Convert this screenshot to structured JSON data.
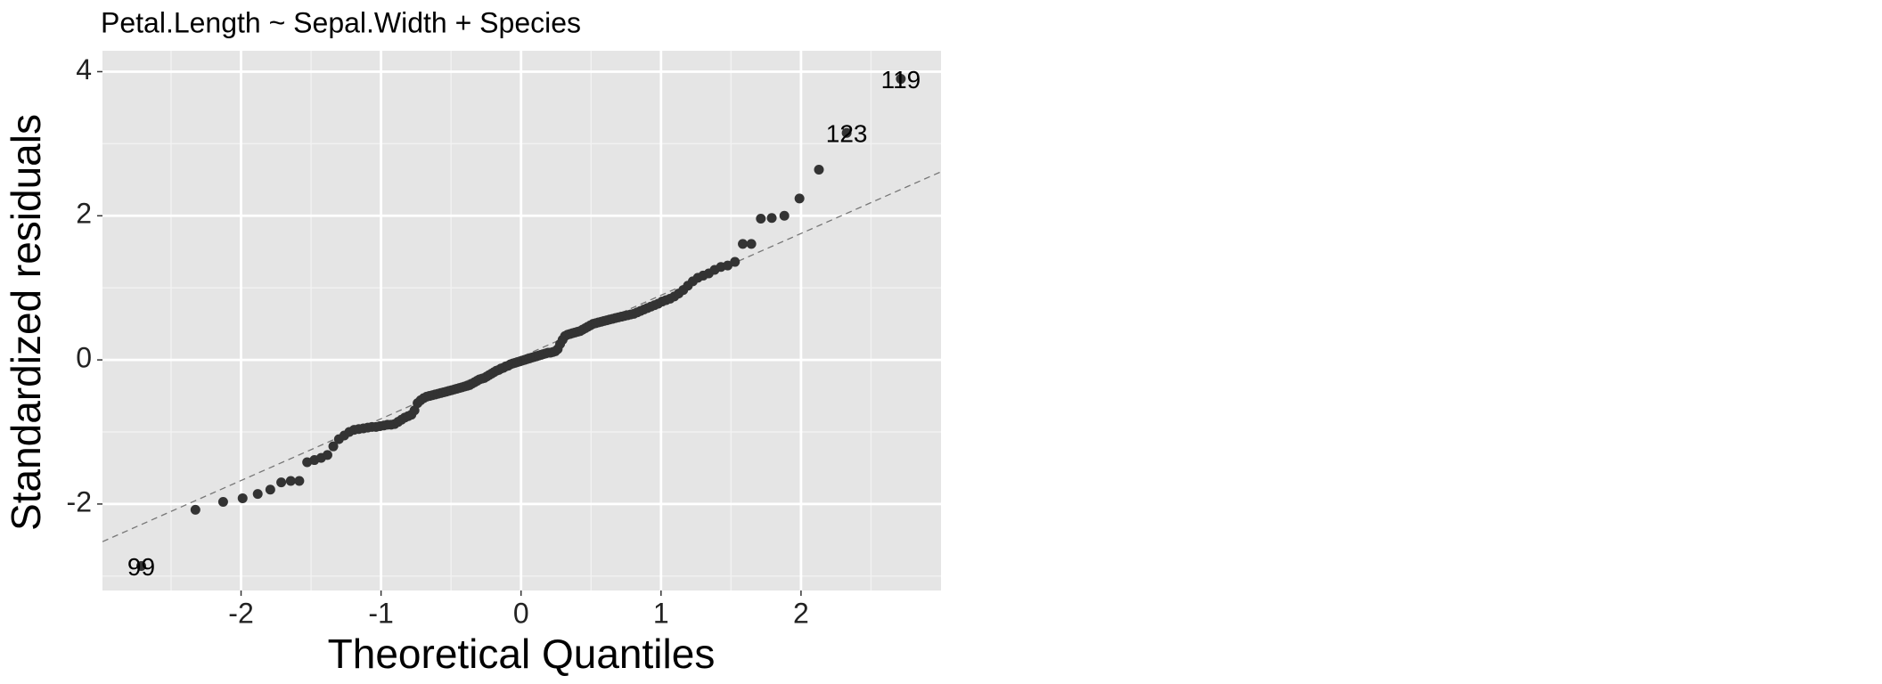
{
  "chart_data": {
    "type": "scatter",
    "title": "Petal.Length ~ Sepal.Width + Species",
    "x_label": "Theoretical Quantiles",
    "y_label": "Standardized residuals",
    "xlim": [
      -2.99,
      3.0
    ],
    "ylim": [
      -3.2,
      4.29
    ],
    "xticks": [
      -2,
      -1,
      0,
      1,
      2
    ],
    "yticks": [
      -2,
      0,
      2,
      4
    ],
    "xminor": [
      -2.5,
      -1.5,
      -0.5,
      0.5,
      1.5,
      2.5
    ],
    "yminor": [
      -3,
      -1,
      1,
      3
    ],
    "grid": true,
    "color": "#333333",
    "reference_line": {
      "slope": 0.857,
      "intercept": 0.04
    },
    "annotations": [
      {
        "text": "99",
        "x": -2.713,
        "y": -2.86
      },
      {
        "text": "123",
        "x": 2.326,
        "y": 3.15
      },
      {
        "text": "119",
        "x": 2.713,
        "y": 3.9
      }
    ],
    "x": [
      -2.713,
      -2.326,
      -2.128,
      -1.989,
      -1.881,
      -1.791,
      -1.713,
      -1.645,
      -1.584,
      -1.528,
      -1.476,
      -1.428,
      -1.383,
      -1.341,
      -1.301,
      -1.263,
      -1.227,
      -1.192,
      -1.159,
      -1.126,
      -1.095,
      -1.065,
      -1.036,
      -1.008,
      -0.98,
      -0.954,
      -0.928,
      -0.903,
      -0.878,
      -0.854,
      -0.83,
      -0.806,
      -0.783,
      -0.761,
      -0.739,
      -0.717,
      -0.695,
      -0.674,
      -0.654,
      -0.633,
      -0.613,
      -0.593,
      -0.573,
      -0.553,
      -0.534,
      -0.515,
      -0.496,
      -0.477,
      -0.459,
      -0.44,
      -0.422,
      -0.404,
      -0.385,
      -0.367,
      -0.35,
      -0.332,
      -0.314,
      -0.297,
      -0.279,
      -0.262,
      -0.245,
      -0.228,
      -0.21,
      -0.193,
      -0.176,
      -0.159,
      -0.143,
      -0.126,
      -0.109,
      -0.092,
      -0.075,
      -0.059,
      -0.042,
      -0.025,
      -0.008,
      0.008,
      0.025,
      0.042,
      0.059,
      0.075,
      0.092,
      0.109,
      0.126,
      0.143,
      0.159,
      0.176,
      0.193,
      0.21,
      0.228,
      0.245,
      0.262,
      0.279,
      0.297,
      0.314,
      0.332,
      0.35,
      0.367,
      0.385,
      0.404,
      0.422,
      0.44,
      0.459,
      0.477,
      0.496,
      0.515,
      0.534,
      0.553,
      0.573,
      0.593,
      0.613,
      0.633,
      0.654,
      0.674,
      0.695,
      0.717,
      0.739,
      0.761,
      0.783,
      0.806,
      0.83,
      0.854,
      0.878,
      0.903,
      0.928,
      0.954,
      0.98,
      1.008,
      1.036,
      1.065,
      1.095,
      1.126,
      1.159,
      1.192,
      1.227,
      1.263,
      1.301,
      1.341,
      1.383,
      1.428,
      1.476,
      1.528,
      1.584,
      1.645,
      1.713,
      1.791,
      1.881,
      1.989,
      2.128,
      2.326,
      2.713
    ],
    "values": [
      -2.86,
      -2.08,
      -1.97,
      -1.92,
      -1.86,
      -1.8,
      -1.7,
      -1.68,
      -1.68,
      -1.42,
      -1.39,
      -1.36,
      -1.32,
      -1.2,
      -1.1,
      -1.05,
      -1.0,
      -0.97,
      -0.96,
      -0.95,
      -0.94,
      -0.93,
      -0.93,
      -0.92,
      -0.91,
      -0.9,
      -0.9,
      -0.89,
      -0.86,
      -0.83,
      -0.8,
      -0.78,
      -0.76,
      -0.7,
      -0.6,
      -0.56,
      -0.53,
      -0.51,
      -0.5,
      -0.49,
      -0.48,
      -0.47,
      -0.46,
      -0.45,
      -0.44,
      -0.43,
      -0.42,
      -0.41,
      -0.4,
      -0.39,
      -0.38,
      -0.37,
      -0.36,
      -0.35,
      -0.33,
      -0.31,
      -0.29,
      -0.27,
      -0.26,
      -0.25,
      -0.23,
      -0.21,
      -0.19,
      -0.17,
      -0.15,
      -0.14,
      -0.12,
      -0.11,
      -0.09,
      -0.08,
      -0.06,
      -0.05,
      -0.04,
      -0.03,
      -0.02,
      -0.01,
      0.0,
      0.01,
      0.02,
      0.03,
      0.04,
      0.05,
      0.06,
      0.07,
      0.08,
      0.09,
      0.1,
      0.1,
      0.11,
      0.12,
      0.15,
      0.22,
      0.28,
      0.33,
      0.35,
      0.36,
      0.37,
      0.38,
      0.39,
      0.4,
      0.42,
      0.44,
      0.46,
      0.48,
      0.5,
      0.51,
      0.52,
      0.53,
      0.54,
      0.55,
      0.56,
      0.57,
      0.58,
      0.59,
      0.6,
      0.61,
      0.62,
      0.63,
      0.64,
      0.66,
      0.68,
      0.7,
      0.72,
      0.74,
      0.76,
      0.78,
      0.81,
      0.83,
      0.85,
      0.88,
      0.92,
      0.97,
      1.03,
      1.09,
      1.14,
      1.17,
      1.2,
      1.25,
      1.29,
      1.31,
      1.36,
      1.61,
      1.61,
      1.96,
      1.97,
      2.0,
      2.24,
      2.64,
      3.15,
      3.9
    ]
  }
}
